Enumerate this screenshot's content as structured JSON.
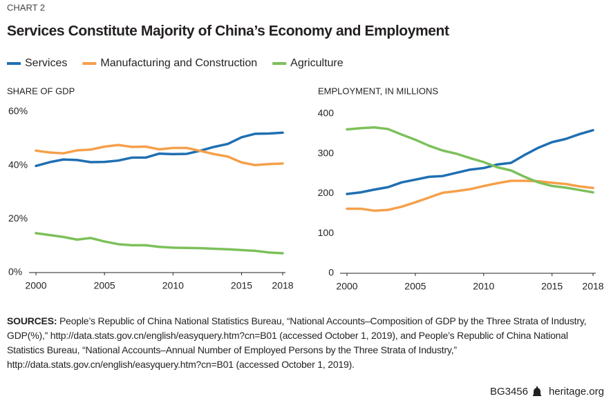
{
  "kicker": "CHART 2",
  "title": "Services Constitute Majority of China’s Economy and Employment",
  "sources": {
    "label": "SOURCES:",
    "text": "People’s Republic of China National Statistics Bureau, “National Accounts–Composition of GDP by the Three Strata of Industry, GDP(%),” http://data.stats.gov.cn/english/easyquery.htm?cn=B01 (accessed October 1, 2019), and People’s Republic of China National Statistics Bureau, “National Accounts–Annual Number of Employed Persons by the Three Strata of Industry,” http://data.stats.gov.cn/english/easyquery.htm?cn=B01 (accessed October 1, 2019)."
  },
  "footer": {
    "code": "BG3456",
    "site": "heritage.org"
  },
  "chart_data": [
    {
      "type": "line",
      "ylabel": "SHARE OF GDP",
      "x": [
        2000,
        2001,
        2002,
        2003,
        2004,
        2005,
        2006,
        2007,
        2008,
        2009,
        2010,
        2011,
        2012,
        2013,
        2014,
        2015,
        2016,
        2017,
        2018
      ],
      "xlim": [
        2000,
        2018
      ],
      "xticks": [
        2000,
        2005,
        2010,
        2015,
        2018
      ],
      "ylim": [
        0,
        60
      ],
      "yticks": [
        {
          "value": 0,
          "label": "0%"
        },
        {
          "value": 20,
          "label": "20%"
        },
        {
          "value": 40,
          "label": "40%"
        },
        {
          "value": 60,
          "label": "60%"
        }
      ],
      "grid": false,
      "series": [
        {
          "name": "Services",
          "color": "#1f6fb2",
          "values": [
            39.8,
            41.2,
            42.2,
            42.0,
            41.2,
            41.3,
            41.8,
            42.9,
            42.9,
            44.4,
            44.2,
            44.3,
            45.5,
            46.9,
            48.0,
            50.5,
            51.8,
            51.9,
            52.2
          ]
        },
        {
          "name": "Manufacturing and Construction",
          "color": "#f5a04a",
          "values": [
            45.5,
            44.8,
            44.5,
            45.6,
            45.9,
            47.0,
            47.6,
            46.9,
            47.0,
            46.0,
            46.5,
            46.5,
            45.4,
            44.2,
            43.3,
            41.1,
            40.1,
            40.5,
            40.7
          ]
        },
        {
          "name": "Agriculture",
          "color": "#7cc05a",
          "values": [
            14.7,
            14.0,
            13.3,
            12.3,
            12.9,
            11.6,
            10.6,
            10.2,
            10.2,
            9.6,
            9.3,
            9.2,
            9.1,
            8.9,
            8.7,
            8.4,
            8.1,
            7.5,
            7.2
          ]
        }
      ]
    },
    {
      "type": "line",
      "ylabel": "EMPLOYMENT, IN MILLIONS",
      "x": [
        2000,
        2001,
        2002,
        2003,
        2004,
        2005,
        2006,
        2007,
        2008,
        2009,
        2010,
        2011,
        2012,
        2013,
        2014,
        2015,
        2016,
        2017,
        2018
      ],
      "xlim": [
        2000,
        2018
      ],
      "xticks": [
        2000,
        2005,
        2010,
        2015,
        2018
      ],
      "ylim": [
        0,
        400
      ],
      "yticks": [
        0,
        100,
        200,
        300,
        400
      ],
      "grid": false,
      "series": [
        {
          "color": "#1f6fb2",
          "values": [
            199,
            203,
            210,
            216,
            228,
            235,
            242,
            244,
            252,
            260,
            264,
            273,
            277,
            297,
            315,
            329,
            337,
            349,
            359
          ]
        },
        {
          "color": "#f5a04a",
          "values": [
            162,
            162,
            157,
            159,
            167,
            178,
            190,
            202,
            206,
            211,
            219,
            226,
            232,
            232,
            231,
            227,
            224,
            218,
            214
          ]
        },
        {
          "color": "#7cc05a",
          "values": [
            361,
            364,
            366,
            362,
            348,
            335,
            320,
            308,
            300,
            289,
            279,
            266,
            258,
            242,
            228,
            219,
            215,
            209,
            203
          ]
        }
      ]
    }
  ]
}
